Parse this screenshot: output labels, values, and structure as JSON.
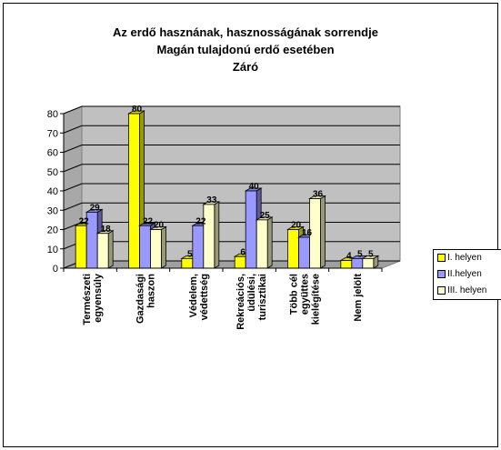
{
  "chart_data": {
    "type": "bar",
    "title_lines": [
      "Az erdő hasznának, hasznosságának sorrendje",
      "Magán tulajdonú erdő esetében",
      "Záró"
    ],
    "categories": [
      [
        "Természeti",
        "egyensúly"
      ],
      [
        "Gazdasági",
        "haszon"
      ],
      [
        "Védelem,",
        "védettség"
      ],
      [
        "Rekreációs,",
        "üdülési,",
        "turisztikai"
      ],
      [
        "Több cél",
        "együttes",
        "kielégítése"
      ],
      [
        "Nem jelölt"
      ]
    ],
    "series": [
      {
        "name": "I. helyen",
        "color": "#ffff00",
        "values": [
          22,
          80,
          5,
          6,
          20,
          4
        ]
      },
      {
        "name": "II.helyen",
        "color": "#9999ff",
        "values": [
          29,
          22,
          22,
          40,
          16,
          5
        ]
      },
      {
        "name": "III. helyen",
        "color": "#ffffcc",
        "values": [
          18,
          20,
          33,
          25,
          36,
          5
        ]
      }
    ],
    "ylim": [
      0,
      80
    ],
    "yticks": [
      0,
      10,
      20,
      30,
      40,
      50,
      60,
      70,
      80
    ],
    "grid": true,
    "legend_position": "right",
    "wall_color": "#c0c0c0"
  }
}
